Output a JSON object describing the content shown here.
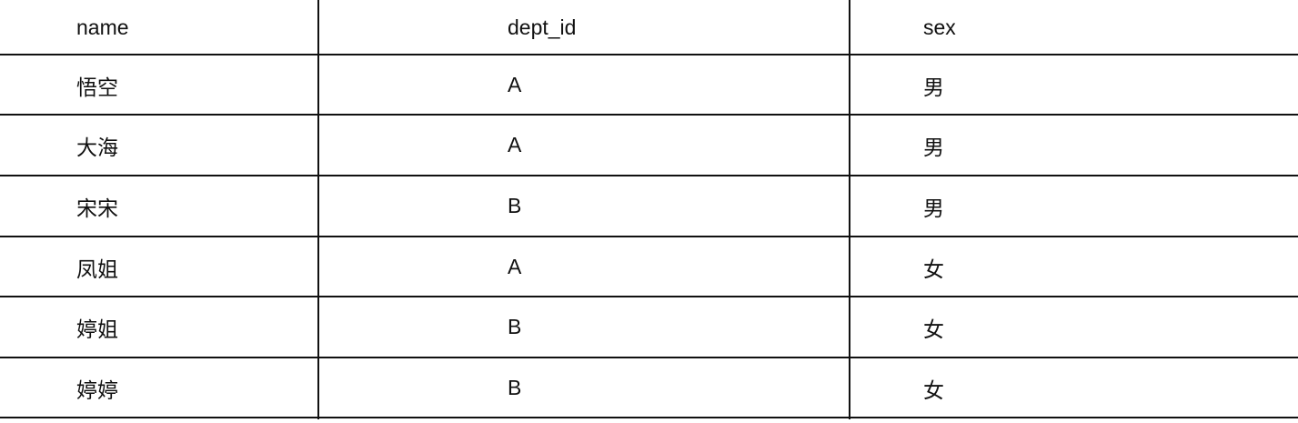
{
  "table": {
    "headers": [
      "name",
      "dept_id",
      "sex"
    ],
    "rows": [
      [
        "悟空",
        "A",
        "男"
      ],
      [
        "大海",
        "A",
        "男"
      ],
      [
        "宋宋",
        "B",
        "男"
      ],
      [
        "凤姐",
        "A",
        "女"
      ],
      [
        "婷姐",
        "B",
        "女"
      ],
      [
        "婷婷",
        "B",
        "女"
      ]
    ]
  }
}
